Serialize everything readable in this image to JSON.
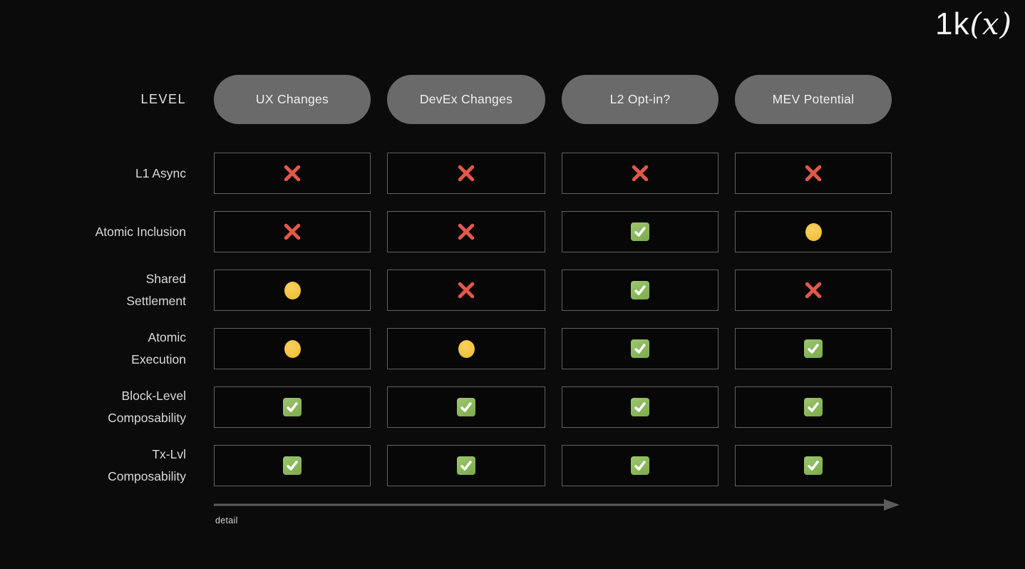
{
  "logo": {
    "prefix": "1k",
    "x_part": "(x)"
  },
  "header": {
    "level_label": "LEVEL",
    "columns": [
      "UX Changes",
      "DevEx Changes",
      "L2 Opt-in?",
      "MEV Potential"
    ]
  },
  "table": {
    "rows": [
      {
        "label": "L1 Async",
        "cells": [
          "cross",
          "cross",
          "cross",
          "cross"
        ]
      },
      {
        "label": "Atomic Inclusion",
        "cells": [
          "cross",
          "cross",
          "check",
          "circle"
        ]
      },
      {
        "label": "Shared\nSettlement",
        "cells": [
          "circle",
          "cross",
          "check",
          "cross"
        ]
      },
      {
        "label": "Atomic\nExecution",
        "cells": [
          "circle",
          "circle",
          "check",
          "check"
        ]
      },
      {
        "label": "Block-Level\nComposability",
        "cells": [
          "check",
          "check",
          "check",
          "check"
        ]
      },
      {
        "label": "Tx-Lvl\nComposability",
        "cells": [
          "check",
          "check",
          "check",
          "check"
        ]
      }
    ]
  },
  "axis": {
    "detail_label": "detail"
  },
  "icons": {
    "cross": "red-cross-icon",
    "circle": "yellow-circle-icon",
    "check": "green-check-icon"
  },
  "colors": {
    "background": "#0b0b0b",
    "pill_bg": "#6a6a6a",
    "pill_text": "#efefef",
    "cell_border": "#616161",
    "cross": "#e2584a",
    "circle": "#f2c23c",
    "check_bg": "#8cba5c",
    "check_mark": "#ffffff",
    "arrow": "#5c5c5c",
    "label_text": "#d9d9d9"
  }
}
